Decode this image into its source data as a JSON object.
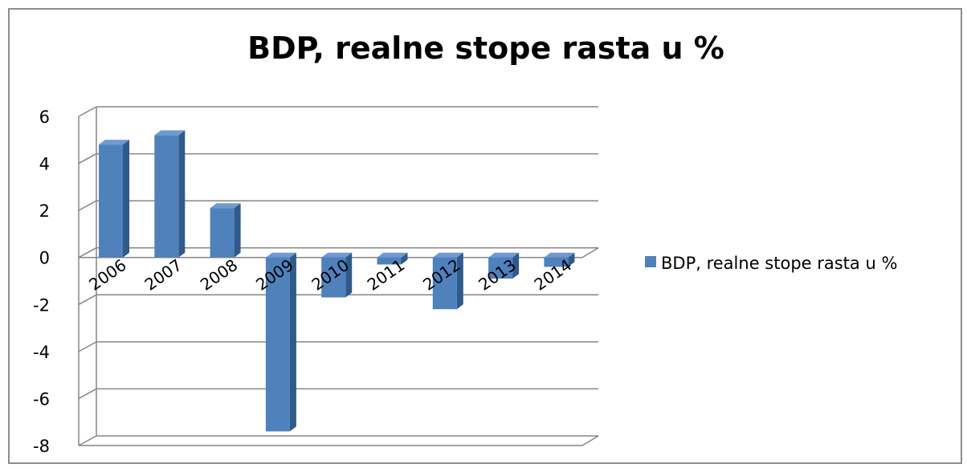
{
  "chart_data": {
    "type": "bar",
    "title": "BDP, realne stope rasta u %",
    "categories": [
      "2006",
      "2007",
      "2008",
      "2009",
      "2010",
      "2011",
      "2012",
      "2013",
      "2014"
    ],
    "series": [
      {
        "name": "BDP, realne stope rasta u %",
        "values": [
          4.8,
          5.2,
          2.1,
          -7.4,
          -1.7,
          -0.3,
          -2.2,
          -0.9,
          -0.4
        ],
        "color": "#4f81bd"
      }
    ],
    "ylim": [
      -8,
      6
    ],
    "yticks": [
      "6",
      "4",
      "2",
      "0",
      "-2",
      "-4",
      "-6",
      "-8"
    ],
    "grid": true,
    "legend": "right",
    "style": "3d-clustered-column"
  }
}
